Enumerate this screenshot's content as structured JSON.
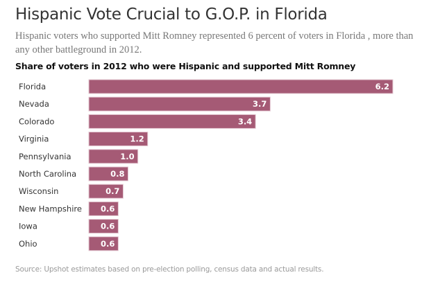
{
  "header": {
    "title": "Hispanic Vote Crucial to G.O.P. in Florida",
    "subtitle": "Hispanic voters who supported Mitt Romney represented 6 percent of voters in Florida , more than any other battleground in 2012."
  },
  "footer": {
    "source": "Source: Upshot estimates based on pre-election polling, census data and actual results."
  },
  "colors": {
    "bar": "#a55a75",
    "bar_edge": "#e4c9d3"
  },
  "chart_data": {
    "type": "bar",
    "orientation": "horizontal",
    "title": "Share of voters in 2012 who were Hispanic and supported Mitt Romney",
    "xlabel": "",
    "ylabel": "",
    "unit": "percent",
    "categories": [
      "Florida",
      "Nevada",
      "Colorado",
      "Virginia",
      "Pennsylvania",
      "North Carolina",
      "Wisconsin",
      "New Hampshire",
      "Iowa",
      "Ohio"
    ],
    "values": [
      6.2,
      3.7,
      3.4,
      1.2,
      1.0,
      0.8,
      0.7,
      0.6,
      0.6,
      0.6
    ],
    "value_labels": [
      "6.2",
      "3.7",
      "3.4",
      "1.2",
      "1.0",
      "0.8",
      "0.7",
      "0.6",
      "0.6",
      "0.6"
    ],
    "xlim": [
      0,
      6.2
    ],
    "grid": false,
    "legend": "none"
  }
}
